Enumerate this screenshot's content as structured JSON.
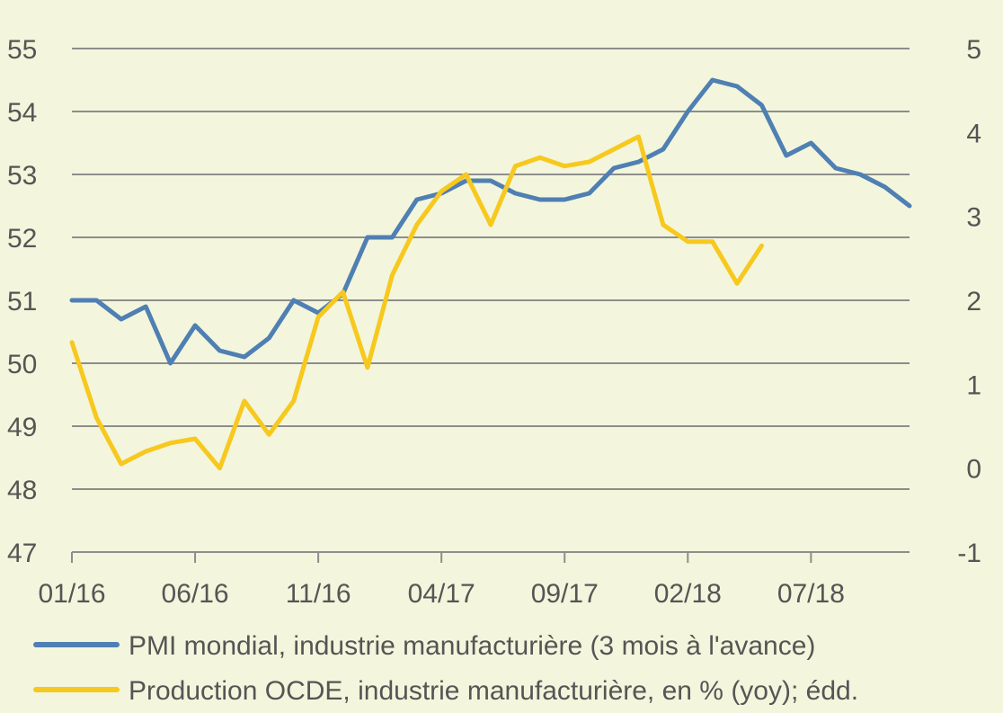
{
  "chart_data": {
    "type": "line",
    "title": "",
    "x": [
      "01/16",
      "02/16",
      "03/16",
      "04/16",
      "05/16",
      "06/16",
      "07/16",
      "08/16",
      "09/16",
      "10/16",
      "11/16",
      "12/16",
      "01/17",
      "02/17",
      "03/17",
      "04/17",
      "05/17",
      "06/17",
      "07/17",
      "08/17",
      "09/17",
      "10/17",
      "11/17",
      "12/17",
      "01/18",
      "02/18",
      "03/18",
      "04/18",
      "05/18",
      "06/18",
      "07/18",
      "08/18",
      "09/18",
      "10/18",
      "11/18"
    ],
    "x_tick_labels": [
      "01/16",
      "06/16",
      "11/16",
      "04/17",
      "09/17",
      "02/18",
      "07/18"
    ],
    "y_left": {
      "ylim": [
        47,
        55
      ],
      "ticks": [
        "47",
        "48",
        "49",
        "50",
        "51",
        "52",
        "53",
        "54",
        "55"
      ]
    },
    "y_right": {
      "ylim": [
        -1,
        5
      ],
      "ticks": [
        "-1",
        "0",
        "1",
        "2",
        "3",
        "4",
        "5"
      ]
    },
    "grid": true,
    "legend_position": "bottom",
    "series": [
      {
        "name": "PMI mondial, industrie manufacturière (3 mois à l'avance)",
        "axis": "left",
        "color": "#4f7fb3",
        "values": [
          51.0,
          51.0,
          50.7,
          50.9,
          50.0,
          50.6,
          50.2,
          50.1,
          50.4,
          51.0,
          50.8,
          51.1,
          52.0,
          52.0,
          52.6,
          52.7,
          52.9,
          52.9,
          52.7,
          52.6,
          52.6,
          52.7,
          53.1,
          53.2,
          53.4,
          54.0,
          54.5,
          54.4,
          54.1,
          53.3,
          53.5,
          53.1,
          53.0,
          52.8,
          52.5
        ]
      },
      {
        "name": "Production OCDE, industrie manufacturière, en % (yoy); édd.",
        "axis": "right",
        "color": "#f7c81e",
        "values": [
          1.5,
          0.6,
          0.05,
          0.2,
          0.3,
          0.35,
          0.0,
          0.8,
          0.4,
          0.8,
          1.8,
          2.1,
          1.2,
          2.3,
          2.9,
          3.3,
          3.5,
          2.9,
          3.6,
          3.7,
          3.6,
          3.65,
          3.8,
          3.95,
          2.9,
          2.7,
          2.7,
          2.2,
          2.65,
          null,
          null,
          null,
          null,
          null,
          null
        ]
      }
    ]
  }
}
